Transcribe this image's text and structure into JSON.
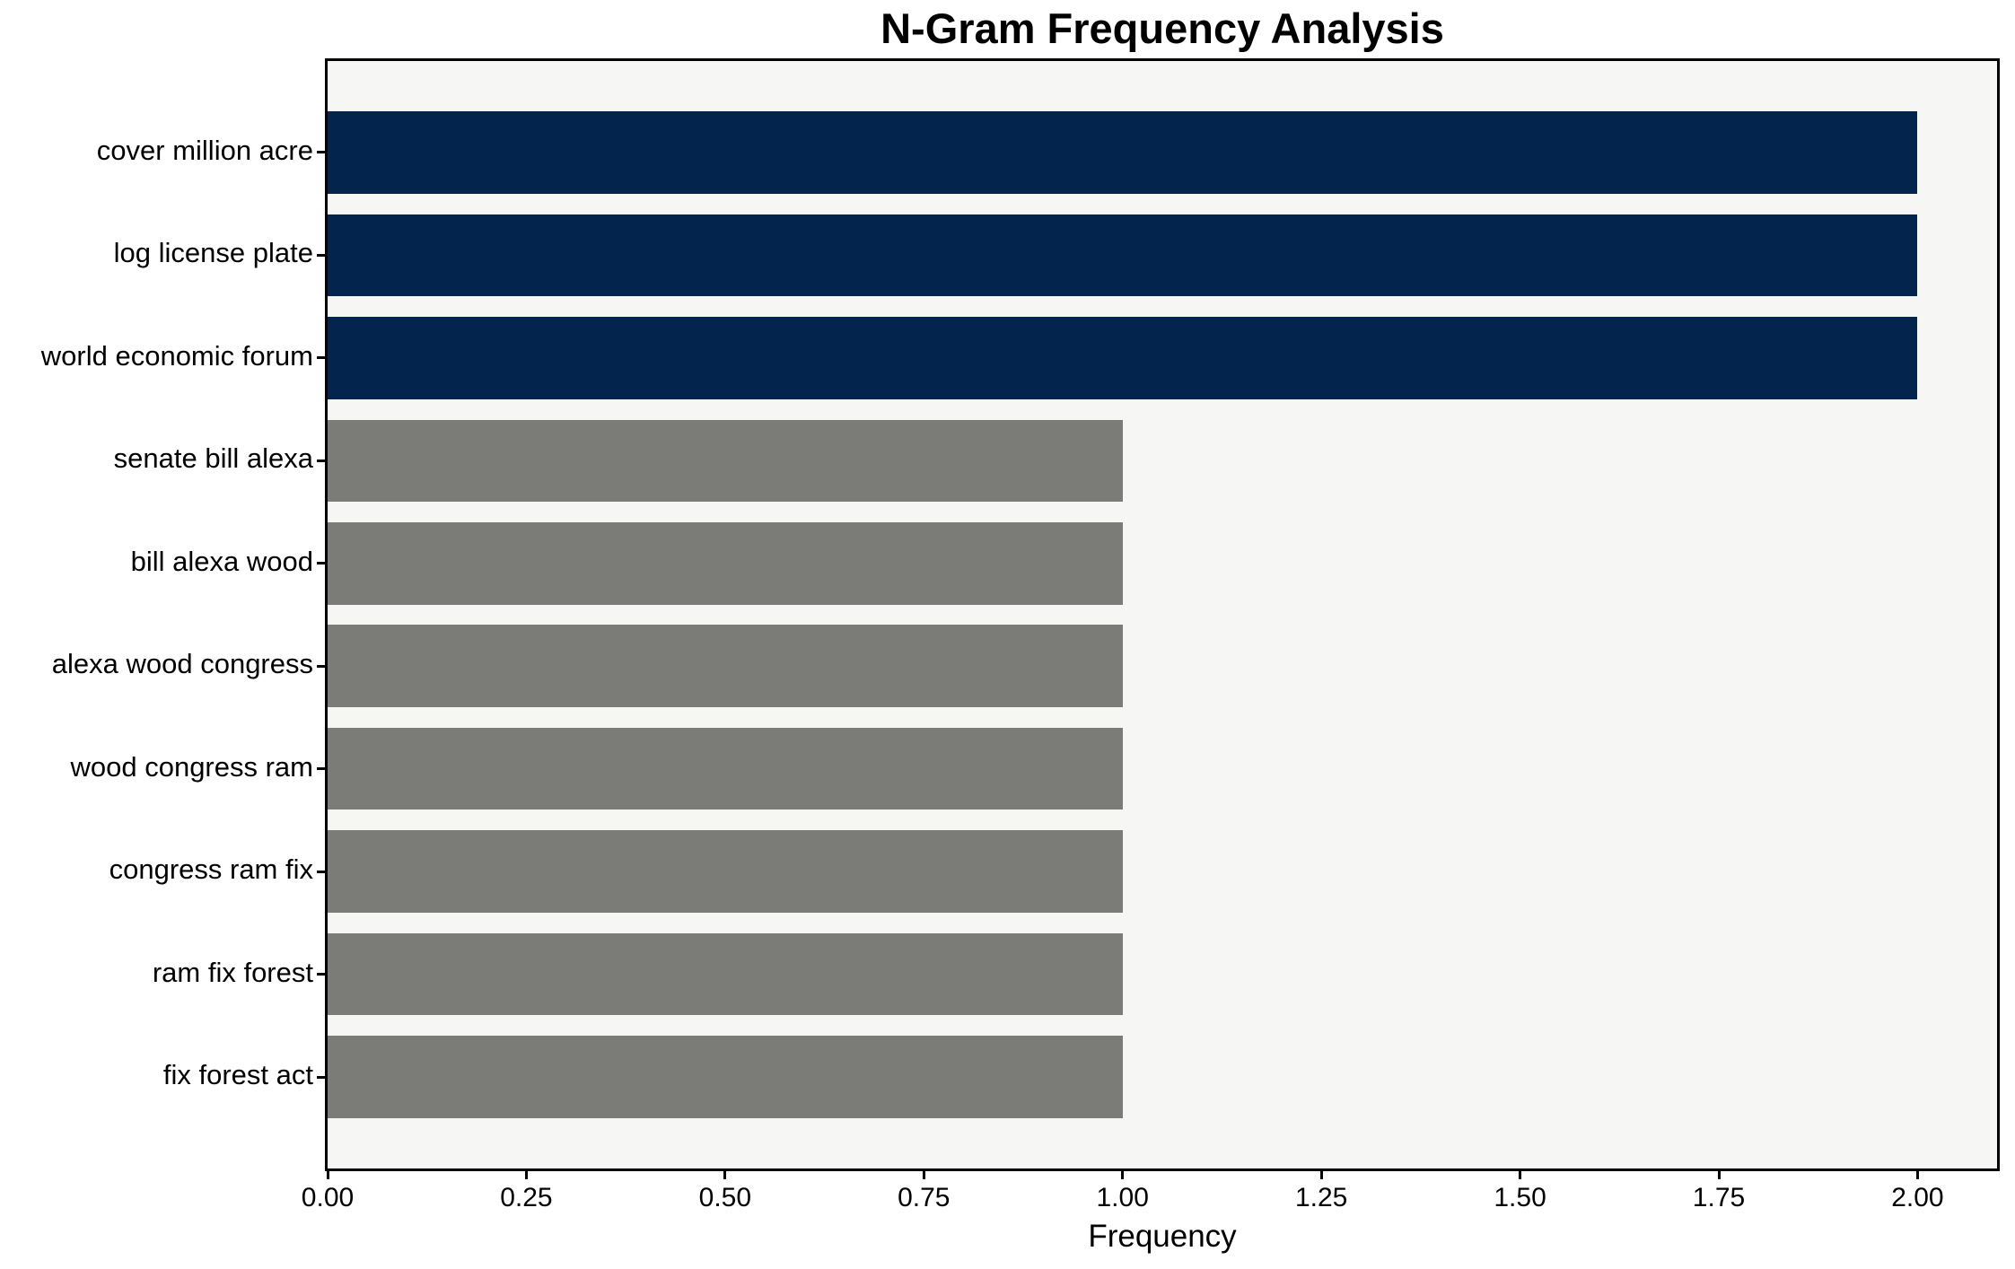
{
  "chart_data": {
    "type": "bar",
    "orientation": "horizontal",
    "title": "N-Gram Frequency Analysis",
    "xlabel": "Frequency",
    "ylabel": "",
    "categories": [
      "cover million acre",
      "log license plate",
      "world economic forum",
      "senate bill alexa",
      "bill alexa wood",
      "alexa wood congress",
      "wood congress ram",
      "congress ram fix",
      "ram fix forest",
      "fix forest act"
    ],
    "values": [
      2,
      2,
      2,
      1,
      1,
      1,
      1,
      1,
      1,
      1
    ],
    "series_colors": [
      "#02244d",
      "#02244d",
      "#02244d",
      "#7b7b78",
      "#7b7b78",
      "#7b7b78",
      "#7b7b78",
      "#7b7b78",
      "#7b7b78",
      "#7b7b78"
    ],
    "xlim": [
      0,
      2.1
    ],
    "xticks": [
      0.0,
      0.25,
      0.5,
      0.75,
      1.0,
      1.25,
      1.5,
      1.75,
      2.0
    ],
    "xtick_labels": [
      "0.00",
      "0.25",
      "0.50",
      "0.75",
      "1.00",
      "1.25",
      "1.50",
      "1.75",
      "2.00"
    ],
    "grid": false,
    "legend": null,
    "colors": {
      "highlight_bar": "#02244d",
      "default_bar": "#7b7b78",
      "plot_background": "#f6f6f5",
      "figure_background": "#ffffff",
      "spine": "#000000",
      "text": "#000000"
    }
  }
}
